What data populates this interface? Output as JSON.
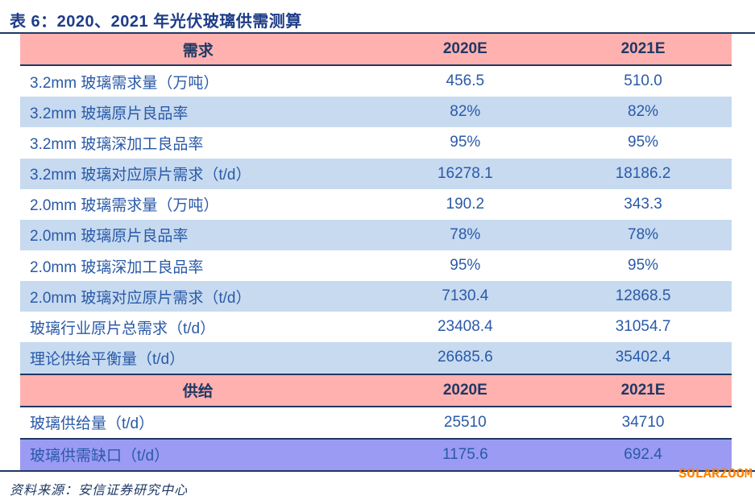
{
  "title": "表 6：2020、2021 年光伏玻璃供需测算",
  "columns": {
    "year1": "2020E",
    "year2": "2021E"
  },
  "rows": [
    {
      "type": "header",
      "label": "需求",
      "c1": "2020E",
      "c2": "2021E"
    },
    {
      "type": "white",
      "label": "3.2mm 玻璃需求量（万吨）",
      "c1": "456.5",
      "c2": "510.0"
    },
    {
      "type": "blue",
      "label": "3.2mm 玻璃原片良品率",
      "c1": "82%",
      "c2": "82%"
    },
    {
      "type": "white",
      "label": "3.2mm 玻璃深加工良品率",
      "c1": "95%",
      "c2": "95%"
    },
    {
      "type": "blue",
      "label": "3.2mm 玻璃对应原片需求（t/d）",
      "c1": "16278.1",
      "c2": "18186.2"
    },
    {
      "type": "white",
      "label": "2.0mm 玻璃需求量（万吨）",
      "c1": "190.2",
      "c2": "343.3"
    },
    {
      "type": "blue",
      "label": "2.0mm 玻璃原片良品率",
      "c1": "78%",
      "c2": "78%"
    },
    {
      "type": "white",
      "label": "2.0mm 玻璃深加工良品率",
      "c1": "95%",
      "c2": "95%"
    },
    {
      "type": "blue",
      "label": "2.0mm 玻璃对应原片需求（t/d）",
      "c1": "7130.4",
      "c2": "12868.5"
    },
    {
      "type": "white",
      "label": "玻璃行业原片总需求（t/d）",
      "c1": "23408.4",
      "c2": "31054.7"
    },
    {
      "type": "blue",
      "label": "理论供给平衡量（t/d）",
      "c1": "26685.6",
      "c2": "35402.4"
    },
    {
      "type": "header",
      "label": "供给",
      "c1": "2020E",
      "c2": "2021E"
    },
    {
      "type": "white",
      "label": "玻璃供给量（t/d）",
      "c1": "25510",
      "c2": "34710"
    },
    {
      "type": "purple",
      "label": "玻璃供需缺口（t/d）",
      "c1": "1175.6",
      "c2": "692.4"
    }
  ],
  "footer": {
    "source": "资料来源：安信证券研究中心",
    "watermark": "SOLARZOOM"
  },
  "colors": {
    "header_pink": "#FEB1AF",
    "row_blue": "#C7DAF0",
    "gap_purple": "#9B9BF3",
    "border_navy": "#1F3864",
    "title_blue": "#1E3C88",
    "cell_text_blue": "#2A5AA8",
    "watermark_orange": "#FF8000"
  }
}
